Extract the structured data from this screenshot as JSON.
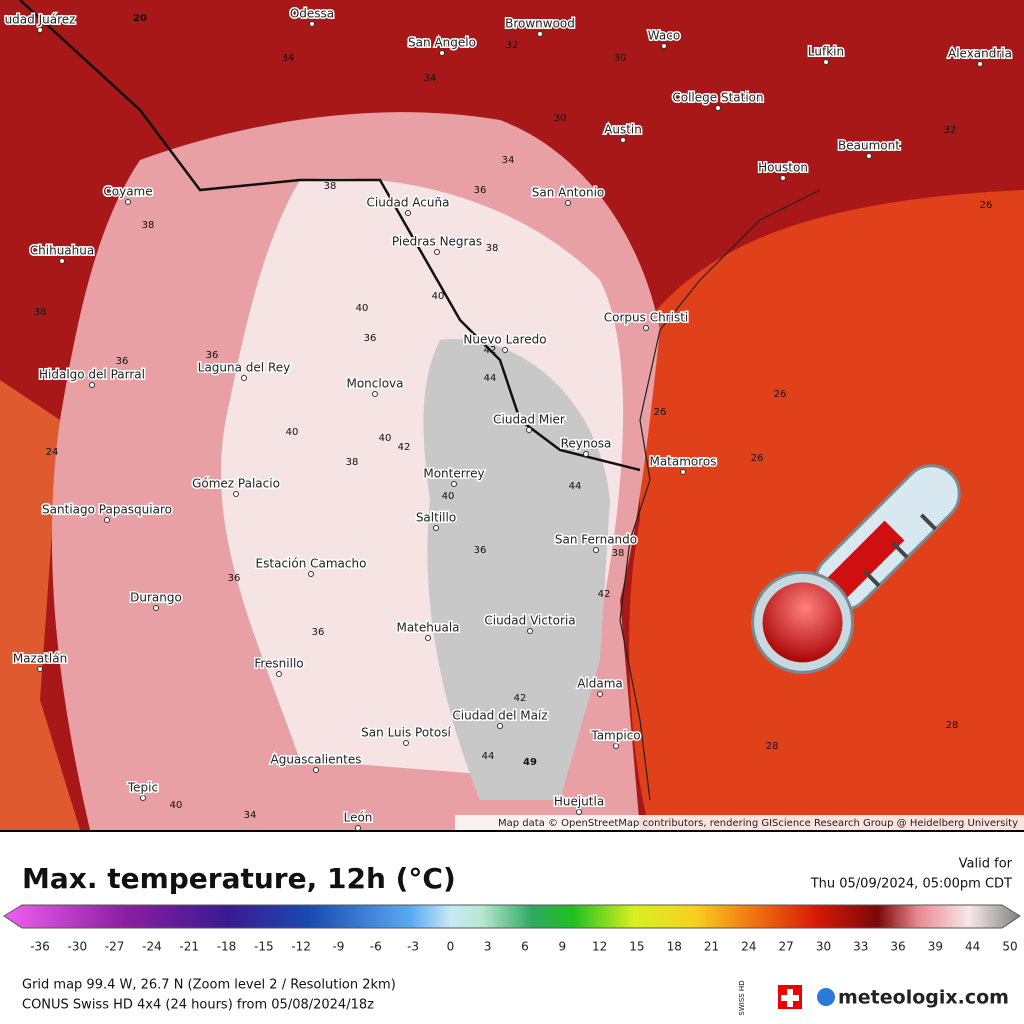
{
  "title": "Max. temperature, 12h (°C)",
  "valid_for": {
    "label": "Valid for",
    "time": "Thu 05/09/2024, 05:00pm CDT"
  },
  "colorbar": {
    "ticks": [
      -36,
      -30,
      -27,
      -24,
      -21,
      -18,
      -15,
      -12,
      -9,
      -6,
      -3,
      0,
      3,
      6,
      9,
      12,
      15,
      18,
      21,
      24,
      27,
      30,
      33,
      36,
      39,
      44,
      50
    ]
  },
  "footer": {
    "line1": "Grid map 99.4 W, 26.7 N (Zoom level 2 / Resolution 2km)",
    "line2": "CONUS Swiss HD 4x4 (24 hours) from 05/08/2024/18z"
  },
  "attribution": "Map data © OpenStreetMap contributors, rendering GIScience Research Group @ Heidelberg University",
  "logo": {
    "swiss": "SWISS HD",
    "brand": "meteologix.com"
  },
  "map": {
    "cities": [
      "udad Juárez",
      "Odessa",
      "San Angelo",
      "Brownwood",
      "Waco",
      "Lufkin",
      "Alexandria",
      "College Station",
      "Austin",
      "Houston",
      "Beaumont",
      "San Antonio",
      "Coyame",
      "Chihuahua",
      "Ciudad Acuña",
      "Piedras Negras",
      "Corpus Christi",
      "Nuevo Laredo",
      "Hidalgo del Parral",
      "Laguna del Rey",
      "Monclova",
      "Ciudad Mier",
      "Reynosa",
      "Matamoros",
      "Monterrey",
      "Gómez Palacio",
      "Saltillo",
      "Santiago Papasquiaro",
      "San Fernando",
      "Estación Camacho",
      "Durango",
      "Ciudad Victoria",
      "Matehuala",
      "Mazatlán",
      "Fresnillo",
      "Aldama",
      "Ciudad del Maíz",
      "San Luis Potosí",
      "Tampico",
      "Aguascalientes",
      "Tepic",
      "Huejutla",
      "León"
    ],
    "temperatures": [
      20,
      34,
      34,
      32,
      30,
      30,
      32,
      34,
      36,
      38,
      36,
      38,
      40,
      38,
      36,
      38,
      40,
      42,
      44,
      40,
      42,
      40,
      38,
      36,
      44,
      40,
      42,
      36,
      49,
      44,
      42,
      38,
      36,
      26,
      26,
      26,
      28,
      28,
      26,
      24,
      36,
      40,
      34
    ]
  }
}
